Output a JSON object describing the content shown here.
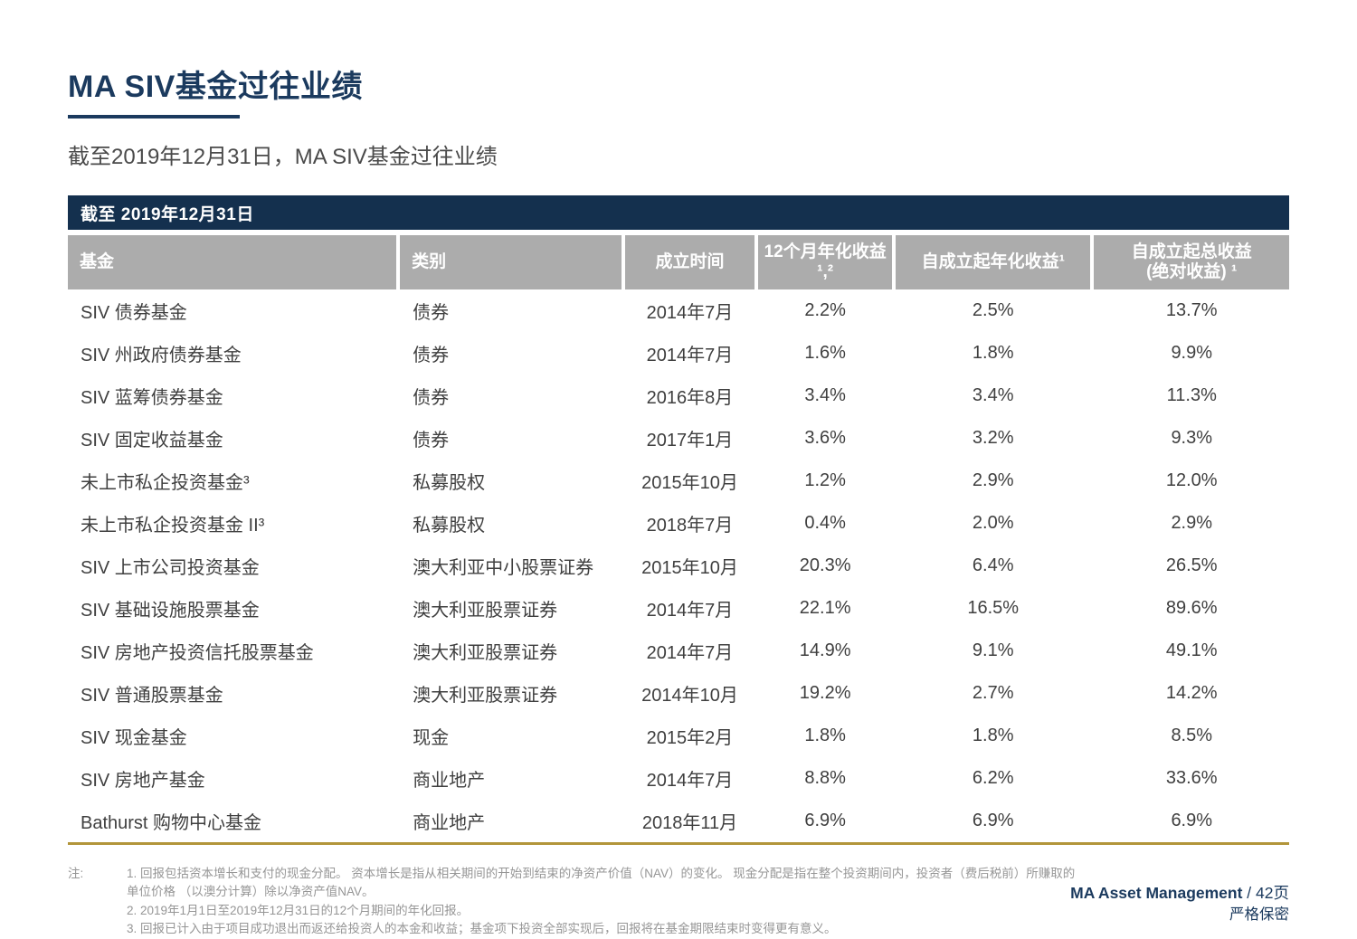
{
  "page": {
    "title": "MA SIV基金过往业绩",
    "subtitle": "截至2019年12月31日，MA SIV基金过往业绩"
  },
  "table": {
    "banner": "截至 2019年12月31日",
    "columns": [
      "基金",
      "类别",
      "成立时间",
      "12个月年化收益¹,²",
      "自成立起年化收益¹",
      "自成立起总收益\n(绝对收益) ¹"
    ],
    "rows": [
      [
        "SIV 债券基金",
        "债券",
        "2014年7月",
        "2.2%",
        "2.5%",
        "13.7%"
      ],
      [
        "SIV 州政府债券基金",
        "债券",
        "2014年7月",
        "1.6%",
        "1.8%",
        "9.9%"
      ],
      [
        "SIV 蓝筹债券基金",
        "债券",
        "2016年8月",
        "3.4%",
        "3.4%",
        "11.3%"
      ],
      [
        "SIV 固定收益基金",
        "债券",
        "2017年1月",
        "3.6%",
        "3.2%",
        "9.3%"
      ],
      [
        "未上市私企投资基金³",
        "私募股权",
        "2015年10月",
        "1.2%",
        "2.9%",
        "12.0%"
      ],
      [
        "未上市私企投资基金 II³",
        "私募股权",
        "2018年7月",
        "0.4%",
        "2.0%",
        "2.9%"
      ],
      [
        "SIV 上市公司投资基金",
        "澳大利亚中小股票证券",
        "2015年10月",
        "20.3%",
        "6.4%",
        "26.5%"
      ],
      [
        "SIV 基础设施股票基金",
        "澳大利亚股票证券",
        "2014年7月",
        "22.1%",
        "16.5%",
        "89.6%"
      ],
      [
        "SIV 房地产投资信托股票基金",
        "澳大利亚股票证券",
        "2014年7月",
        "14.9%",
        "9.1%",
        "49.1%"
      ],
      [
        "SIV 普通股票基金",
        "澳大利亚股票证券",
        "2014年10月",
        "19.2%",
        "2.7%",
        "14.2%"
      ],
      [
        "SIV 现金基金",
        "现金",
        "2015年2月",
        "1.8%",
        "1.8%",
        "8.5%"
      ],
      [
        "SIV 房地产基金",
        "商业地产",
        "2014年7月",
        "8.8%",
        "6.2%",
        "33.6%"
      ],
      [
        "Bathurst 购物中心基金",
        "商业地产",
        "2018年11月",
        "6.9%",
        "6.9%",
        "6.9%"
      ]
    ]
  },
  "notes": {
    "label": "注:",
    "items": [
      "1. 回报包括资本增长和支付的现金分配。 资本增长是指从相关期间的开始到结束的净资产价值（NAV）的变化。 现金分配是指在整个投资期间内，投资者（费后税前）所赚取的\n单位价格 （以澳分计算）除以净资产值NAV。",
      "2. 2019年1月1日至2019年12月31日的12个月期间的年化回报。",
      "3. 回报已计入由于项目成功退出而返还给投资人的本金和收益；基金项下投资全部实现后，回报将在基金期限结束时变得更有意义。"
    ]
  },
  "footer": {
    "brand": "MA Asset Management",
    "page_suffix": " / 42页",
    "confidential": "严格保密"
  },
  "colors": {
    "navy": "#14304e",
    "title_navy": "#1b3a5e",
    "header_gray": "#acacac",
    "gold": "#b2953a",
    "body_text": "#3f3f3f",
    "note_text": "#969696"
  }
}
